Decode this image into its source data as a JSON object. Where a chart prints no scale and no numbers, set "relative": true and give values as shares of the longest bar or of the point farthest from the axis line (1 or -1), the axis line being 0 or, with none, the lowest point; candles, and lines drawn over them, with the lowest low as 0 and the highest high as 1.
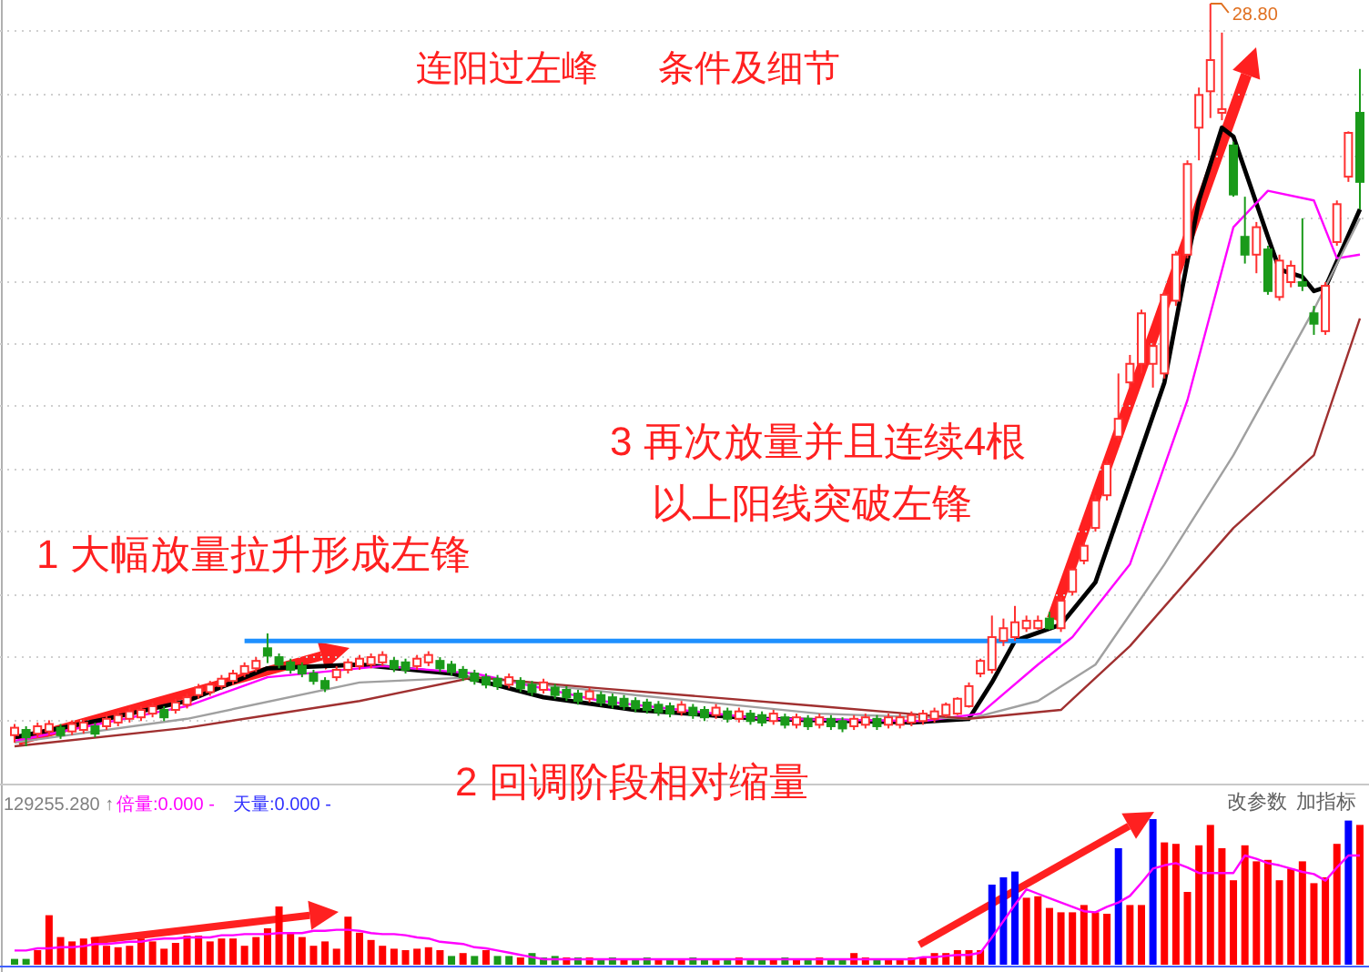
{
  "chart_data": [
    {
      "type": "candlestick",
      "title": "连阳过左峰      条件及细节",
      "relative": true,
      "grid": true,
      "categories": [
        null,
        null,
        null,
        null,
        null,
        null,
        null,
        null,
        null,
        null,
        null,
        null,
        null,
        null,
        null,
        null,
        null,
        null,
        null,
        null,
        null,
        null,
        null,
        null,
        null,
        null,
        null,
        null,
        null,
        null,
        null,
        null,
        null,
        null,
        null,
        null,
        null,
        null,
        null,
        null,
        null,
        null,
        null,
        null,
        null,
        null,
        null,
        null,
        null,
        null,
        null,
        null,
        null,
        null,
        null,
        null,
        null,
        null,
        null,
        null,
        null,
        null,
        null,
        null,
        null,
        null,
        null,
        null,
        null,
        null,
        null,
        null,
        null,
        null,
        null,
        null,
        null,
        null,
        null,
        null,
        null,
        null,
        null,
        null,
        null,
        null,
        null,
        null,
        null,
        null,
        null,
        null,
        null,
        null,
        null,
        null,
        null,
        null,
        null,
        null,
        null,
        null,
        null,
        null,
        null,
        null,
        null,
        null,
        null,
        null,
        null,
        null,
        null,
        null,
        null,
        null,
        null,
        null
      ],
      "ohlc": [
        [
          0.015,
          0.03,
          0.005,
          0.025
        ],
        [
          0.022,
          0.027,
          0.0,
          0.012
        ],
        [
          0.017,
          0.032,
          0.012,
          0.027
        ],
        [
          0.02,
          0.035,
          0.015,
          0.03
        ],
        [
          0.025,
          0.03,
          0.01,
          0.015
        ],
        [
          0.02,
          0.035,
          0.015,
          0.03
        ],
        [
          0.022,
          0.037,
          0.017,
          0.032
        ],
        [
          0.027,
          0.032,
          0.012,
          0.017
        ],
        [
          0.027,
          0.042,
          0.022,
          0.037
        ],
        [
          0.032,
          0.047,
          0.027,
          0.042
        ],
        [
          0.037,
          0.052,
          0.032,
          0.047
        ],
        [
          0.039,
          0.054,
          0.034,
          0.049
        ],
        [
          0.044,
          0.059,
          0.039,
          0.054
        ],
        [
          0.049,
          0.054,
          0.034,
          0.039
        ],
        [
          0.049,
          0.064,
          0.044,
          0.059
        ],
        [
          0.056,
          0.071,
          0.051,
          0.066
        ],
        [
          0.069,
          0.084,
          0.064,
          0.079
        ],
        [
          0.073,
          0.088,
          0.068,
          0.083
        ],
        [
          0.081,
          0.096,
          0.076,
          0.091
        ],
        [
          0.088,
          0.103,
          0.083,
          0.098
        ],
        [
          0.098,
          0.113,
          0.093,
          0.108
        ],
        [
          0.105,
          0.12,
          0.1,
          0.115
        ],
        [
          0.132,
          0.152,
          0.112,
          0.122
        ],
        [
          0.12,
          0.125,
          0.105,
          0.11
        ],
        [
          0.113,
          0.118,
          0.098,
          0.103
        ],
        [
          0.108,
          0.113,
          0.093,
          0.098
        ],
        [
          0.098,
          0.103,
          0.083,
          0.088
        ],
        [
          0.088,
          0.093,
          0.073,
          0.078
        ],
        [
          0.093,
          0.108,
          0.088,
          0.103
        ],
        [
          0.103,
          0.118,
          0.098,
          0.113
        ],
        [
          0.108,
          0.123,
          0.103,
          0.118
        ],
        [
          0.11,
          0.125,
          0.105,
          0.12
        ],
        [
          0.113,
          0.128,
          0.108,
          0.123
        ],
        [
          0.115,
          0.12,
          0.1,
          0.105
        ],
        [
          0.113,
          0.118,
          0.098,
          0.103
        ],
        [
          0.108,
          0.123,
          0.103,
          0.118
        ],
        [
          0.113,
          0.128,
          0.108,
          0.123
        ],
        [
          0.115,
          0.12,
          0.1,
          0.105
        ],
        [
          0.11,
          0.115,
          0.095,
          0.1
        ],
        [
          0.103,
          0.108,
          0.088,
          0.093
        ],
        [
          0.098,
          0.103,
          0.083,
          0.088
        ],
        [
          0.093,
          0.098,
          0.078,
          0.083
        ],
        [
          0.091,
          0.096,
          0.076,
          0.081
        ],
        [
          0.083,
          0.098,
          0.078,
          0.093
        ],
        [
          0.088,
          0.093,
          0.073,
          0.078
        ],
        [
          0.083,
          0.088,
          0.068,
          0.073
        ],
        [
          0.076,
          0.091,
          0.071,
          0.086
        ],
        [
          0.079,
          0.084,
          0.064,
          0.069
        ],
        [
          0.076,
          0.081,
          0.061,
          0.066
        ],
        [
          0.071,
          0.076,
          0.056,
          0.061
        ],
        [
          0.064,
          0.079,
          0.059,
          0.074
        ],
        [
          0.069,
          0.074,
          0.054,
          0.059
        ],
        [
          0.066,
          0.071,
          0.051,
          0.056
        ],
        [
          0.064,
          0.069,
          0.049,
          0.054
        ],
        [
          0.061,
          0.066,
          0.046,
          0.051
        ],
        [
          0.059,
          0.064,
          0.044,
          0.049
        ],
        [
          0.056,
          0.061,
          0.041,
          0.046
        ],
        [
          0.054,
          0.059,
          0.039,
          0.044
        ],
        [
          0.046,
          0.061,
          0.041,
          0.056
        ],
        [
          0.052,
          0.057,
          0.037,
          0.042
        ],
        [
          0.049,
          0.054,
          0.034,
          0.039
        ],
        [
          0.042,
          0.057,
          0.037,
          0.052
        ],
        [
          0.047,
          0.052,
          0.032,
          0.037
        ],
        [
          0.037,
          0.052,
          0.032,
          0.047
        ],
        [
          0.044,
          0.049,
          0.029,
          0.034
        ],
        [
          0.042,
          0.047,
          0.027,
          0.032
        ],
        [
          0.034,
          0.049,
          0.029,
          0.044
        ],
        [
          0.039,
          0.044,
          0.024,
          0.029
        ],
        [
          0.029,
          0.044,
          0.024,
          0.039
        ],
        [
          0.037,
          0.042,
          0.022,
          0.027
        ],
        [
          0.029,
          0.044,
          0.024,
          0.039
        ],
        [
          0.037,
          0.042,
          0.022,
          0.027
        ],
        [
          0.034,
          0.039,
          0.019,
          0.024
        ],
        [
          0.027,
          0.042,
          0.022,
          0.037
        ],
        [
          0.029,
          0.044,
          0.024,
          0.039
        ],
        [
          0.037,
          0.042,
          0.022,
          0.027
        ],
        [
          0.029,
          0.044,
          0.024,
          0.039
        ],
        [
          0.029,
          0.044,
          0.024,
          0.039
        ],
        [
          0.032,
          0.047,
          0.027,
          0.042
        ],
        [
          0.034,
          0.049,
          0.029,
          0.044
        ],
        [
          0.037,
          0.052,
          0.032,
          0.047
        ],
        [
          0.042,
          0.059,
          0.039,
          0.056
        ],
        [
          0.044,
          0.066,
          0.042,
          0.064
        ],
        [
          0.054,
          0.086,
          0.052,
          0.081
        ],
        [
          0.098,
          0.118,
          0.093,
          0.115
        ],
        [
          0.103,
          0.176,
          0.098,
          0.147
        ],
        [
          0.142,
          0.172,
          0.135,
          0.159
        ],
        [
          0.147,
          0.189,
          0.142,
          0.167
        ],
        [
          0.159,
          0.176,
          0.154,
          0.169
        ],
        [
          0.159,
          0.176,
          0.157,
          0.169
        ],
        [
          0.172,
          0.181,
          0.157,
          0.159
        ],
        [
          0.159,
          0.201,
          0.154,
          0.196
        ],
        [
          0.208,
          0.24,
          0.203,
          0.238
        ],
        [
          0.25,
          0.275,
          0.245,
          0.27
        ],
        [
          0.294,
          0.338,
          0.289,
          0.331
        ],
        [
          0.338,
          0.385,
          0.331,
          0.38
        ],
        [
          0.417,
          0.502,
          0.412,
          0.441
        ],
        [
          0.49,
          0.527,
          0.483,
          0.515
        ],
        [
          0.515,
          0.588,
          0.502,
          0.583
        ],
        [
          0.515,
          0.544,
          0.483,
          0.539
        ],
        [
          0.502,
          0.613,
          0.495,
          0.608
        ],
        [
          0.6,
          0.667,
          0.593,
          0.662
        ],
        [
          0.662,
          0.789,
          0.657,
          0.784
        ],
        [
          0.833,
          0.887,
          0.789,
          0.877
        ],
        [
          0.882,
          1.0,
          0.846,
          0.924
        ],
        [
          0.853,
          0.961,
          0.843,
          0.858
        ],
        [
          0.809,
          0.814,
          0.74,
          0.743
        ],
        [
          0.686,
          0.74,
          0.65,
          0.662
        ],
        [
          0.662,
          0.706,
          0.637,
          0.699
        ],
        [
          0.669,
          0.674,
          0.608,
          0.613
        ],
        [
          0.605,
          0.662,
          0.6,
          0.654
        ],
        [
          0.625,
          0.654,
          0.618,
          0.647
        ],
        [
          0.625,
          0.711,
          0.613,
          0.62
        ],
        [
          0.583,
          0.593,
          0.554,
          0.569
        ],
        [
          0.559,
          0.625,
          0.554,
          0.62
        ],
        [
          0.679,
          0.735,
          0.674,
          0.73
        ],
        [
          0.767,
          0.828,
          0.76,
          0.826
        ],
        [
          0.853,
          0.912,
          0.723,
          0.76
        ]
      ],
      "colors": [
        "#ff3030",
        "#1a9a1a",
        "#ff3030",
        "#ff3030",
        "#1a9a1a",
        "#ff3030",
        "#ff3030",
        "#1a9a1a",
        "#ff3030",
        "#ff3030",
        "#ff3030",
        "#ff3030",
        "#ff3030",
        "#1a9a1a",
        "#ff3030",
        "#ff3030",
        "#ff3030",
        "#ff3030",
        "#ff3030",
        "#ff3030",
        "#ff3030",
        "#ff3030",
        "#1a9a1a",
        "#1a9a1a",
        "#1a9a1a",
        "#1a9a1a",
        "#1a9a1a",
        "#1a9a1a",
        "#ff3030",
        "#ff3030",
        "#ff3030",
        "#ff3030",
        "#ff3030",
        "#1a9a1a",
        "#1a9a1a",
        "#ff3030",
        "#ff3030",
        "#1a9a1a",
        "#1a9a1a",
        "#1a9a1a",
        "#1a9a1a",
        "#1a9a1a",
        "#1a9a1a",
        "#ff3030",
        "#1a9a1a",
        "#1a9a1a",
        "#ff3030",
        "#1a9a1a",
        "#1a9a1a",
        "#1a9a1a",
        "#ff3030",
        "#1a9a1a",
        "#1a9a1a",
        "#1a9a1a",
        "#1a9a1a",
        "#1a9a1a",
        "#1a9a1a",
        "#1a9a1a",
        "#ff3030",
        "#1a9a1a",
        "#1a9a1a",
        "#ff3030",
        "#1a9a1a",
        "#ff3030",
        "#1a9a1a",
        "#1a9a1a",
        "#ff3030",
        "#1a9a1a",
        "#ff3030",
        "#1a9a1a",
        "#ff3030",
        "#1a9a1a",
        "#1a9a1a",
        "#ff3030",
        "#ff3030",
        "#1a9a1a",
        "#ff3030",
        "#ff3030",
        "#ff3030",
        "#ff3030",
        "#ff3030",
        "#ff3030",
        "#ff3030",
        "#ff3030",
        "#ff3030",
        "#ff3030",
        "#ff3030",
        "#ff3030",
        "#ff3030",
        "#ff3030",
        "#1a9a1a",
        "#ff3030",
        "#ff3030",
        "#ff3030",
        "#ff3030",
        "#ff3030",
        "#ff3030",
        "#ff3030",
        "#ff3030",
        "#ff3030",
        "#ff3030",
        "#ff3030",
        "#ff3030",
        "#ff3030",
        "#ff3030",
        "#ff3030",
        "#1a9a1a",
        "#1a9a1a",
        "#ff3030",
        "#1a9a1a",
        "#ff3030",
        "#ff3030",
        "#1a9a1a",
        "#1a9a1a",
        "#ff3030",
        "#ff3030",
        "#ff3030",
        "#1a9a1a"
      ],
      "series": [
        {
          "type": "line",
          "color": "#000000",
          "values": [
            0.012,
            null,
            null,
            null,
            null,
            null,
            null,
            null,
            0.037,
            null,
            null,
            null,
            null,
            null,
            null,
            0.061,
            null,
            null,
            null,
            null,
            null,
            null,
            0.105,
            null,
            null,
            null,
            null,
            null,
            null,
            null,
            0.11,
            null,
            null,
            null,
            null,
            null,
            null,
            null,
            0.098,
            null,
            null,
            null,
            null,
            null,
            null,
            null,
            0.066,
            null,
            null,
            null,
            null,
            null,
            null,
            null,
            0.049,
            null,
            null,
            null,
            null,
            null,
            null,
            null,
            null,
            null,
            null,
            0.037,
            null,
            null,
            null,
            null,
            null,
            null,
            null,
            null,
            null,
            null,
            null,
            null,
            0.032,
            null,
            null,
            null,
            null,
            0.037,
            null,
            0.086,
            null,
            0.142,
            null,
            null,
            null,
            0.164,
            null,
            null,
            0.221,
            null,
            null,
            0.355,
            null,
            null,
            0.49,
            null,
            null,
            0.735,
            null,
            0.833,
            0.821,
            null,
            null,
            0.686,
            0.642,
            null,
            0.632,
            0.613,
            0.618,
            null,
            null,
            0.723
          ]
        },
        {
          "type": "line",
          "color": "#ff00ff",
          "values": [
            0.007,
            null,
            null,
            null,
            null,
            null,
            null,
            null,
            null,
            null,
            null,
            null,
            null,
            null,
            null,
            0.054,
            null,
            null,
            null,
            null,
            null,
            null,
            0.093,
            null,
            null,
            null,
            null,
            null,
            null,
            null,
            null,
            null,
            0.108,
            null,
            null,
            null,
            null,
            null,
            null,
            null,
            0.098,
            null,
            null,
            null,
            null,
            null,
            null,
            null,
            null,
            null,
            null,
            0.061,
            null,
            null,
            null,
            null,
            null,
            null,
            null,
            null,
            null,
            null,
            null,
            null,
            null,
            0.037,
            null,
            null,
            null,
            null,
            null,
            null,
            null,
            null,
            null,
            null,
            null,
            null,
            null,
            0.034,
            null,
            null,
            null,
            null,
            0.044,
            null,
            null,
            null,
            null,
            0.11,
            null,
            null,
            0.147,
            null,
            null,
            null,
            null,
            0.245,
            null,
            null,
            null,
            null,
            0.466,
            null,
            null,
            null,
            0.699,
            null,
            null,
            0.748,
            null,
            null,
            null,
            0.735,
            null,
            0.657,
            null,
            0.662
          ]
        },
        {
          "type": "line",
          "color": "#a0a0a0",
          "values": [
            0.005,
            null,
            null,
            null,
            null,
            null,
            null,
            null,
            null,
            null,
            null,
            null,
            null,
            null,
            null,
            0.037,
            null,
            null,
            null,
            null,
            null,
            null,
            null,
            null,
            null,
            null,
            null,
            null,
            null,
            null,
            0.086,
            null,
            null,
            null,
            null,
            null,
            null,
            null,
            null,
            null,
            0.093,
            null,
            null,
            null,
            null,
            null,
            null,
            null,
            null,
            null,
            null,
            null,
            null,
            null,
            0.069,
            null,
            null,
            null,
            null,
            null,
            null,
            null,
            null,
            null,
            null,
            null,
            null,
            null,
            null,
            null,
            0.044,
            null,
            null,
            null,
            null,
            null,
            null,
            null,
            null,
            null,
            null,
            null,
            null,
            0.037,
            null,
            null,
            null,
            null,
            null,
            0.061,
            null,
            null,
            null,
            null,
            0.11,
            null,
            null,
            null,
            null,
            null,
            0.245,
            null,
            null,
            null,
            null,
            null,
            0.392,
            null,
            null,
            null,
            null,
            null,
            null,
            0.588,
            null,
            null,
            null,
            0.711
          ]
        },
        {
          "type": "line",
          "color": "#a03030",
          "values": [
            0.0,
            null,
            null,
            null,
            null,
            null,
            null,
            null,
            null,
            null,
            null,
            null,
            null,
            null,
            null,
            0.025,
            null,
            null,
            null,
            null,
            null,
            null,
            null,
            null,
            null,
            null,
            null,
            null,
            null,
            null,
            0.061,
            null,
            null,
            null,
            null,
            null,
            null,
            null,
            null,
            null,
            0.093,
            null,
            null,
            null,
            null,
            null,
            null,
            null,
            null,
            null,
            null,
            0.078,
            null,
            null,
            null,
            null,
            null,
            null,
            null,
            null,
            null,
            null,
            null,
            null,
            null,
            null,
            null,
            null,
            null,
            null,
            0.054,
            null,
            null,
            null,
            null,
            null,
            null,
            null,
            null,
            null,
            null,
            null,
            null,
            0.037,
            null,
            null,
            null,
            null,
            null,
            null,
            null,
            0.049,
            null,
            null,
            null,
            null,
            null,
            0.135,
            null,
            null,
            null,
            null,
            null,
            null,
            null,
            null,
            0.294,
            null,
            null,
            null,
            null,
            null,
            null,
            0.392,
            null,
            null,
            null,
            0.576
          ]
        },
        {
          "type": "line",
          "color": "#1e90ff",
          "values": [
            null,
            null,
            null,
            null,
            null,
            null,
            null,
            null,
            null,
            null,
            null,
            null,
            null,
            null,
            null,
            null,
            null,
            null,
            null,
            null,
            0.142,
            null,
            null,
            null,
            null,
            null,
            null,
            null,
            null,
            null,
            null,
            null,
            null,
            null,
            null,
            null,
            null,
            null,
            null,
            null,
            null,
            null,
            null,
            null,
            null,
            null,
            null,
            null,
            null,
            null,
            null,
            null,
            null,
            null,
            null,
            null,
            null,
            null,
            null,
            null,
            null,
            null,
            null,
            null,
            null,
            null,
            null,
            null,
            null,
            null,
            null,
            null,
            null,
            null,
            null,
            null,
            null,
            null,
            null,
            null,
            null,
            null,
            null,
            null,
            null,
            null,
            null,
            null,
            null,
            null,
            null,
            0.142,
            null,
            null,
            null,
            null,
            null,
            null,
            null,
            null,
            null,
            null,
            null,
            null,
            null,
            null,
            null,
            null,
            null,
            null,
            null,
            null,
            null,
            null,
            null,
            null,
            null,
            null
          ]
        }
      ],
      "annotations": [
        "1 大幅放量拉升形成左锋",
        "2 回调阶段相对缩量",
        "3 再次放量并且连续4根",
        "以上阳线突破左锋",
        "28.80"
      ]
    },
    {
      "type": "bar",
      "relative": true,
      "categories": [
        null,
        null,
        null,
        null,
        null,
        null,
        null,
        null,
        null,
        null,
        null,
        null,
        null,
        null,
        null,
        null,
        null,
        null,
        null,
        null,
        null,
        null,
        null,
        null,
        null,
        null,
        null,
        null,
        null,
        null,
        null,
        null,
        null,
        null,
        null,
        null,
        null,
        null,
        null,
        null,
        null,
        null,
        null,
        null,
        null,
        null,
        null,
        null,
        null,
        null,
        null,
        null,
        null,
        null,
        null,
        null,
        null,
        null,
        null,
        null,
        null,
        null,
        null,
        null,
        null,
        null,
        null,
        null,
        null,
        null,
        null,
        null,
        null,
        null,
        null,
        null,
        null,
        null,
        null,
        null,
        null,
        null,
        null,
        null,
        null,
        null,
        null,
        null,
        null,
        null,
        null,
        null,
        null,
        null,
        null,
        null,
        null,
        null,
        null,
        null,
        null,
        null,
        null,
        null,
        null,
        null,
        null,
        null,
        null,
        null,
        null,
        null,
        null,
        null,
        null,
        null,
        null,
        null
      ],
      "values": [
        0.04,
        0.04,
        0.1,
        0.34,
        0.19,
        0.16,
        0.18,
        0.19,
        0.13,
        0.12,
        0.13,
        0.18,
        0.16,
        0.11,
        0.15,
        0.2,
        0.2,
        0.16,
        0.18,
        0.18,
        0.13,
        0.19,
        0.25,
        0.4,
        0.22,
        0.19,
        0.13,
        0.16,
        0.11,
        0.33,
        0.22,
        0.17,
        0.13,
        0.11,
        0.1,
        0.11,
        0.12,
        0.1,
        0.06,
        0.08,
        0.06,
        0.1,
        0.06,
        0.06,
        0.05,
        0.08,
        0.05,
        0.06,
        0.05,
        0.05,
        0.05,
        0.04,
        0.05,
        0.04,
        0.04,
        0.05,
        0.04,
        0.04,
        0.04,
        0.05,
        0.04,
        0.04,
        0.04,
        0.05,
        0.04,
        0.04,
        0.04,
        0.05,
        0.04,
        0.04,
        0.05,
        0.04,
        0.04,
        0.08,
        0.05,
        0.04,
        0.04,
        0.04,
        0.05,
        0.05,
        0.08,
        0.08,
        0.1,
        0.1,
        0.1,
        0.55,
        0.6,
        0.64,
        0.46,
        0.47,
        0.39,
        0.36,
        0.36,
        0.41,
        0.36,
        0.35,
        0.8,
        0.41,
        0.41,
        1.0,
        0.84,
        0.83,
        0.5,
        0.82,
        0.96,
        0.8,
        0.58,
        0.82,
        0.71,
        0.72,
        0.58,
        0.66,
        0.71,
        0.56,
        0.6,
        0.83,
        0.99,
        0.96
      ],
      "colors": [
        "#1a9a1a",
        "#1a9a1a",
        "#ff0000",
        "#ff0000",
        "#ff0000",
        "#ff0000",
        "#ff0000",
        "#ff0000",
        "#ff0000",
        "#ff0000",
        "#ff0000",
        "#ff0000",
        "#ff0000",
        "#ff0000",
        "#ff0000",
        "#ff0000",
        "#ff0000",
        "#ff0000",
        "#ff0000",
        "#ff0000",
        "#ff0000",
        "#ff0000",
        "#ff0000",
        "#ff0000",
        "#ff0000",
        "#ff0000",
        "#ff0000",
        "#ff0000",
        "#ff0000",
        "#ff0000",
        "#ff0000",
        "#ff0000",
        "#ff0000",
        "#ff0000",
        "#ff0000",
        "#ff0000",
        "#ff0000",
        "#ff0000",
        "#1a9a1a",
        "#ff0000",
        "#1a9a1a",
        "#ff0000",
        "#1a9a1a",
        "#1a9a1a",
        "#ff0000",
        "#1a9a1a",
        "#1a9a1a",
        "#1a9a1a",
        "#ff0000",
        "#1a9a1a",
        "#ff0000",
        "#1a9a1a",
        "#1a9a1a",
        "#ff0000",
        "#1a9a1a",
        "#1a9a1a",
        "#ff0000",
        "#1a9a1a",
        "#ff0000",
        "#1a9a1a",
        "#1a9a1a",
        "#ff0000",
        "#1a9a1a",
        "#ff0000",
        "#1a9a1a",
        "#1a9a1a",
        "#ff0000",
        "#1a9a1a",
        "#ff0000",
        "#1a9a1a",
        "#ff0000",
        "#1a9a1a",
        "#1a9a1a",
        "#ff0000",
        "#ff0000",
        "#1a9a1a",
        "#ff0000",
        "#ff0000",
        "#ff0000",
        "#ff0000",
        "#ff0000",
        "#ff0000",
        "#ff0000",
        "#ff0000",
        "#ff0000",
        "#0000ff",
        "#0000ff",
        "#0000ff",
        "#ff0000",
        "#ff0000",
        "#ff0000",
        "#ff0000",
        "#ff0000",
        "#ff0000",
        "#ff0000",
        "#ff0000",
        "#0000ff",
        "#ff0000",
        "#ff0000",
        "#0000ff",
        "#ff0000",
        "#ff0000",
        "#ff0000",
        "#ff0000",
        "#ff0000",
        "#ff0000",
        "#ff0000",
        "#ff0000",
        "#ff0000",
        "#ff0000",
        "#ff0000",
        "#ff0000",
        "#ff0000",
        "#ff0000",
        "#ff0000",
        "#ff0000",
        "#0000ff",
        "#ff0000"
      ],
      "annotations": [
        "129255.280 ↑",
        "倍量:0.000 -",
        "天量:0.000 -",
        "改参数",
        "加指标"
      ]
    },
    {
      "type": "line",
      "relative": true,
      "categories": [
        null,
        null,
        null,
        null,
        null,
        null,
        null,
        null,
        null,
        null,
        null,
        null,
        null,
        null,
        null,
        null,
        null,
        null,
        null,
        null,
        null,
        null,
        null,
        null,
        null,
        null,
        null,
        null,
        null,
        null,
        null,
        null,
        null,
        null,
        null,
        null,
        null,
        null,
        null,
        null,
        null,
        null,
        null,
        null,
        null,
        null,
        null,
        null,
        null,
        null,
        null,
        null,
        null,
        null,
        null,
        null,
        null,
        null,
        null,
        null,
        null,
        null,
        null,
        null,
        null,
        null,
        null,
        null,
        null,
        null,
        null,
        null,
        null,
        null,
        null,
        null,
        null,
        null,
        null,
        null,
        null,
        null,
        null,
        null,
        null,
        null,
        null,
        null,
        null,
        null,
        null,
        null,
        null,
        null,
        null,
        null,
        null,
        null,
        null,
        null,
        null,
        null,
        null,
        null,
        null,
        null,
        null,
        null,
        null,
        null,
        null,
        null,
        null,
        null,
        null,
        null,
        null,
        null
      ],
      "series": [
        {
          "type": "line",
          "color": "#ff00ff",
          "values": [
            0.13,
            0.13,
            0.15,
            0.15,
            0.16,
            0.16,
            0.17,
            0.19,
            0.19,
            0.2,
            0.21,
            0.21,
            0.23,
            0.24,
            0.24,
            0.25,
            0.25,
            0.25,
            0.27,
            0.27,
            0.28,
            0.28,
            0.28,
            0.29,
            0.29,
            0.29,
            0.31,
            0.31,
            0.32,
            0.32,
            0.31,
            0.29,
            0.28,
            0.28,
            0.27,
            0.25,
            0.24,
            0.21,
            0.2,
            0.19,
            0.16,
            0.15,
            0.13,
            0.11,
            0.09,
            0.07,
            0.05,
            0.05,
            0.05,
            0.05,
            0.05,
            0.05,
            0.05,
            0.05,
            0.05,
            0.05,
            0.05,
            0.05,
            0.05,
            0.05,
            0.05,
            0.05,
            0.05,
            0.05,
            0.05,
            0.05,
            0.05,
            0.05,
            0.05,
            0.05,
            0.05,
            0.05,
            0.05,
            0.05,
            0.05,
            0.05,
            0.05,
            0.05,
            0.05,
            0.07,
            0.07,
            0.08,
            0.09,
            0.09,
            0.11,
            0.25,
            0.4,
            0.55,
            0.69,
            0.65,
            0.61,
            0.57,
            0.53,
            0.49,
            0.48,
            0.53,
            0.57,
            0.63,
            0.75,
            0.88,
            0.91,
            0.93,
            0.89,
            0.84,
            0.84,
            0.84,
            0.84,
            1.0,
            0.97,
            0.93,
            0.91,
            0.88,
            0.85,
            0.83,
            0.77,
            0.89,
            1.0,
            1.0
          ]
        }
      ]
    }
  ]
}
